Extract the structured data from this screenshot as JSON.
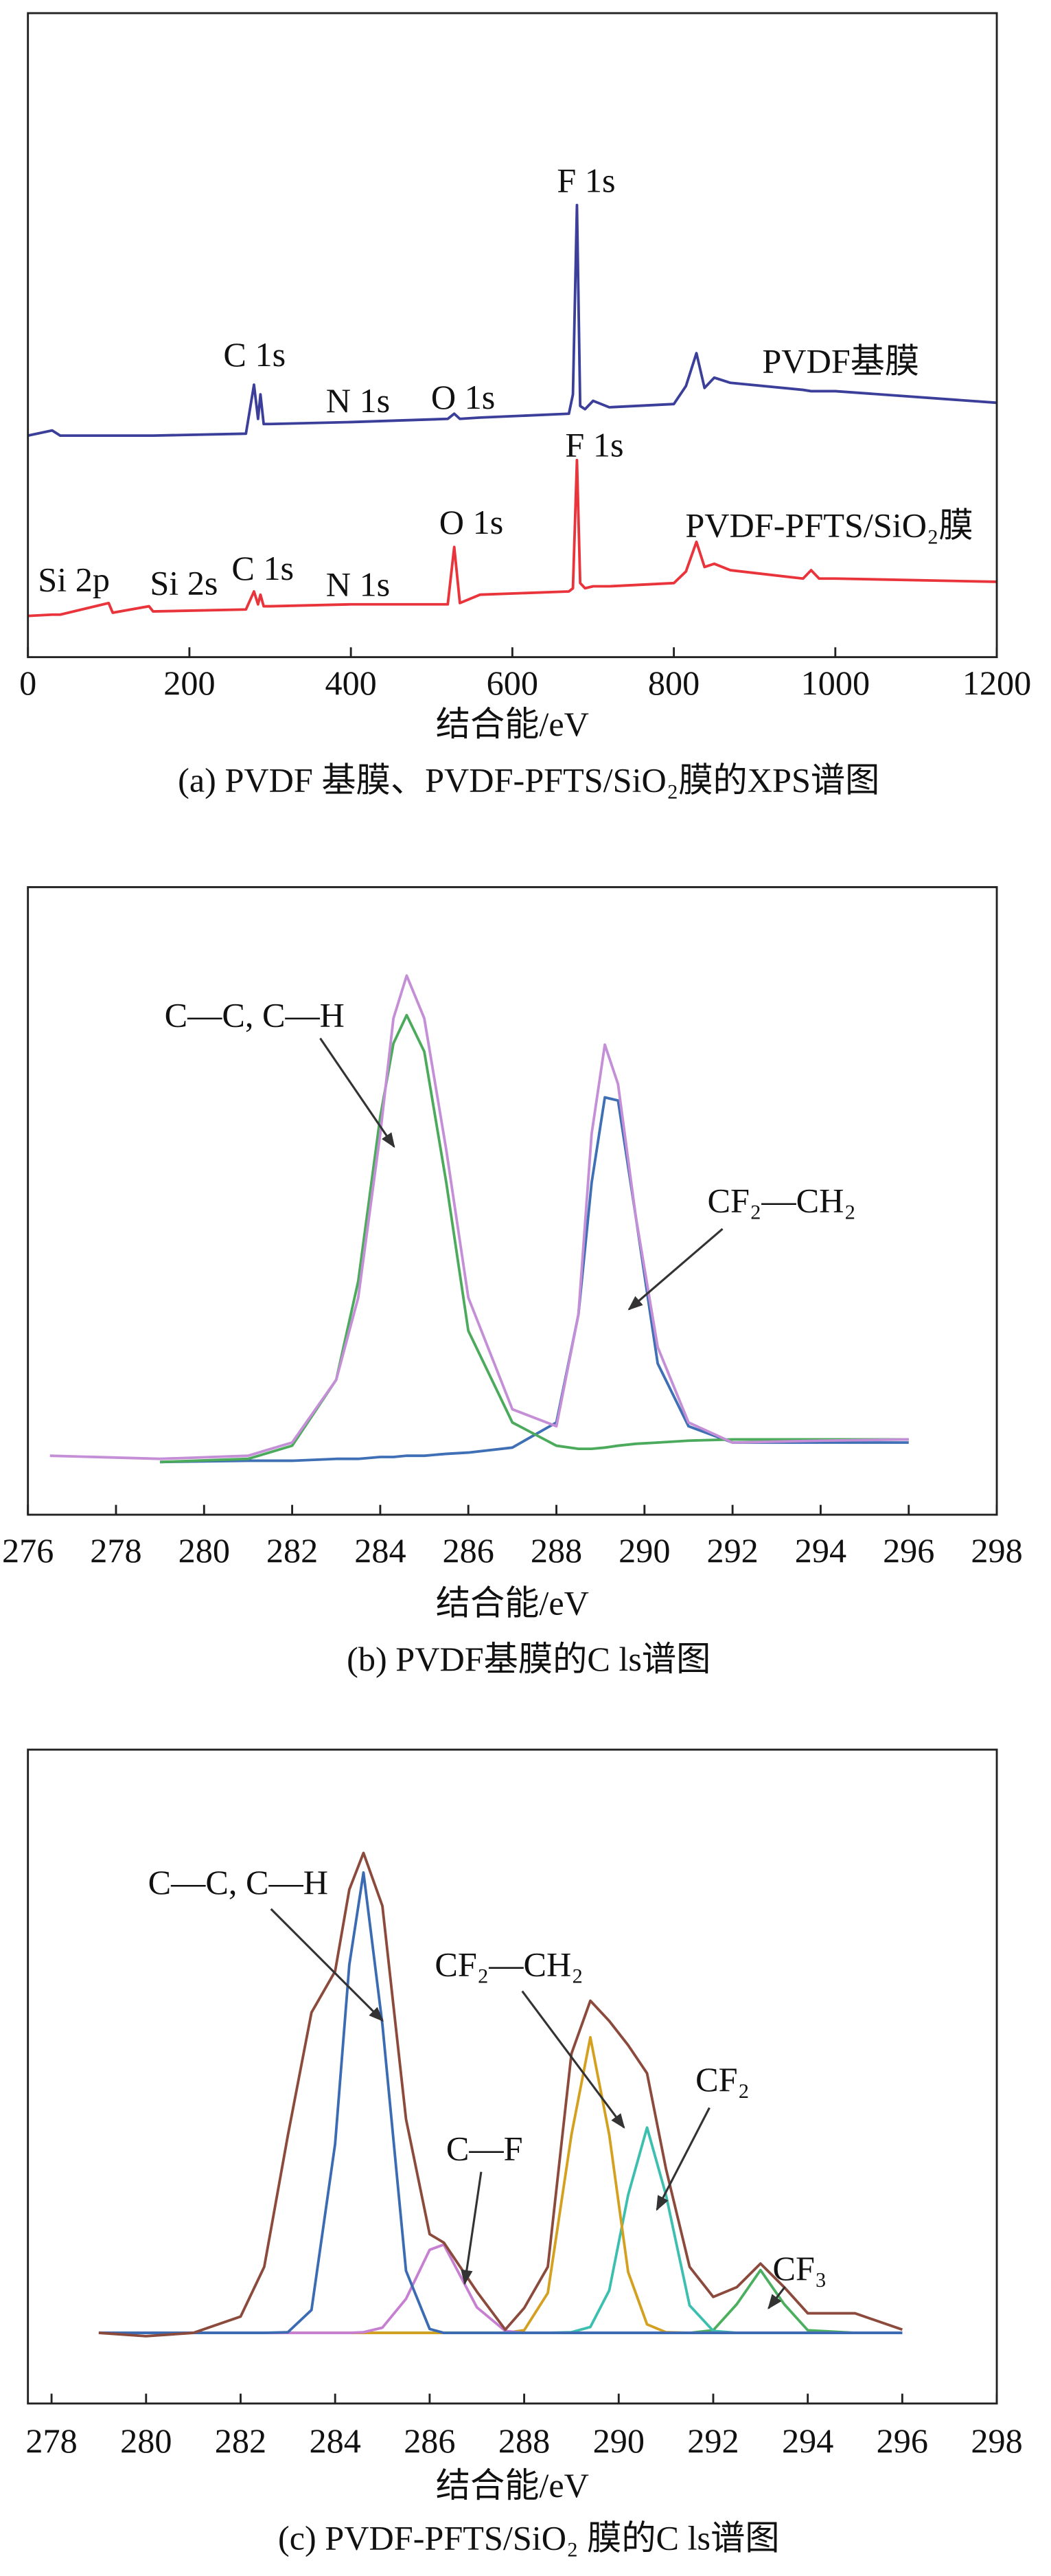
{
  "chart_data": [
    {
      "type": "line",
      "xlabel": "结合能/eV",
      "caption": "(a) PVDF 基膜、PVDF-PFTS/SiO₂膜的XPS谱图",
      "xlim": [
        0,
        1200
      ],
      "ylim": [
        0,
        100
      ],
      "xticks": [
        0,
        200,
        400,
        600,
        800,
        1000,
        1200
      ],
      "x": [
        0,
        30,
        40,
        100,
        105,
        150,
        155,
        270,
        280,
        285,
        288,
        292,
        300,
        400,
        520,
        528,
        535,
        560,
        670,
        675,
        680,
        684,
        690,
        700,
        720,
        800,
        815,
        828,
        838,
        850,
        870,
        960,
        970,
        980,
        1000,
        1200
      ],
      "series": [
        {
          "name": "PVDF基膜",
          "color": "#3b3f9a",
          "values": [
            34.4,
            35.2,
            34.4,
            34.4,
            34.4,
            34.4,
            34.4,
            34.7,
            42.3,
            37.0,
            40.8,
            36.2,
            36.2,
            36.5,
            37.0,
            37.8,
            37.0,
            37.2,
            37.8,
            40.8,
            70.2,
            39.0,
            38.5,
            39.8,
            38.8,
            39.3,
            42.1,
            47.2,
            41.8,
            43.4,
            42.6,
            41.5,
            41.3,
            41.3,
            41.3,
            39.5
          ]
        },
        {
          "name": "PVDF-PFTS/SiO₂膜",
          "color": "#e8343a",
          "values": [
            6.4,
            6.6,
            6.6,
            8.4,
            6.9,
            7.9,
            7.1,
            7.4,
            10.2,
            8.2,
            9.7,
            7.9,
            7.9,
            8.2,
            8.2,
            17.1,
            8.4,
            9.7,
            10.2,
            10.7,
            30.6,
            11.5,
            10.7,
            11.0,
            11.0,
            11.5,
            13.3,
            17.9,
            14.0,
            14.5,
            13.5,
            12.2,
            13.5,
            12.2,
            12.2,
            11.7
          ]
        }
      ],
      "annotations": [
        "F 1s",
        "C 1s",
        "N 1s",
        "O 1s",
        "F 1s",
        "O 1s",
        "Si 2p",
        "Si 2s",
        "C 1s",
        "N 1s"
      ]
    },
    {
      "type": "line",
      "xlabel": "结合能/eV",
      "caption": "(b) PVDF基膜的C ls谱图",
      "xlim": [
        276,
        298
      ],
      "ylim": [
        0,
        100
      ],
      "xticks": [
        276,
        278,
        280,
        282,
        284,
        286,
        288,
        290,
        292,
        294,
        296,
        298
      ],
      "x": [
        276.5,
        279,
        281,
        282,
        283,
        283.5,
        284,
        284.3,
        284.6,
        285,
        285.5,
        286,
        287,
        288,
        288.5,
        288.8,
        289.1,
        289.4,
        289.8,
        290.3,
        291,
        292,
        294,
        296
      ],
      "series": [
        {
          "color": "#c48fd6",
          "values": [
            9.4,
            8.9,
            9.4,
            11.5,
            21.5,
            34.6,
            60.7,
            79.1,
            85.9,
            79.1,
            58.1,
            34.6,
            16.8,
            14.1,
            31.9,
            60.7,
            74.9,
            68.6,
            47.6,
            26.7,
            14.7,
            11.5,
            11.8,
            12.0
          ]
        },
        {
          "color": "#4caa5c",
          "values": [
            null,
            8.4,
            8.9,
            11.0,
            21.5,
            37.2,
            63.4,
            75.1,
            79.6,
            73.8,
            52.9,
            29.3,
            14.7,
            11.0,
            10.5,
            10.5,
            10.7,
            11.0,
            11.3,
            11.5,
            11.8,
            12.0,
            12.0,
            12.0
          ]
        },
        {
          "color": "#3f6fb5",
          "values": [
            null,
            8.4,
            8.6,
            8.6,
            8.9,
            8.9,
            9.2,
            9.2,
            9.4,
            9.4,
            9.7,
            9.9,
            10.7,
            14.7,
            31.9,
            52.9,
            66.5,
            66.0,
            47.6,
            24.1,
            14.1,
            11.5,
            11.5,
            11.5
          ]
        }
      ],
      "annotations": [
        "C—C, C—H",
        "CF₂—CH₂"
      ]
    },
    {
      "type": "line",
      "xlabel": "结合能/eV",
      "caption": "(c) PVDF-PFTS/SiO₂ 膜的C ls谱图",
      "xlim": [
        277.5,
        298
      ],
      "ylim": [
        0,
        100
      ],
      "xticks": [
        278,
        280,
        282,
        284,
        286,
        288,
        290,
        292,
        294,
        296,
        298
      ],
      "x": [
        279,
        280,
        281,
        282,
        282.5,
        283,
        283.5,
        284,
        284.3,
        284.6,
        285,
        285.5,
        286,
        286.3,
        287,
        287.6,
        288,
        288.5,
        289,
        289.4,
        289.8,
        290.2,
        290.6,
        291,
        291.5,
        292,
        292.5,
        293,
        293.5,
        294,
        295,
        296
      ],
      "series": [
        {
          "color": "#8b4a3c",
          "values": [
            10.8,
            10.3,
            10.8,
            13.3,
            20.9,
            41.0,
            59.8,
            66.1,
            78.6,
            84.2,
            76.1,
            43.5,
            25.9,
            24.6,
            17.1,
            11.3,
            14.6,
            20.9,
            53.5,
            61.6,
            58.5,
            54.8,
            50.5,
            35.9,
            20.9,
            16.3,
            17.8,
            21.4,
            17.8,
            13.8,
            13.8,
            11.3
          ]
        },
        {
          "color": "#3a6bb3",
          "values": [
            10.8,
            10.8,
            10.8,
            10.8,
            10.8,
            10.9,
            14.3,
            39.7,
            67.1,
            81.2,
            58.0,
            20.3,
            11.4,
            10.8,
            10.8,
            10.8,
            10.8,
            10.8,
            10.8,
            10.8,
            10.8,
            10.8,
            10.8,
            10.8,
            10.8,
            10.8,
            10.8,
            10.8,
            10.8,
            10.8,
            10.8,
            10.8
          ]
        },
        {
          "color": "#c77fd1",
          "values": [
            10.8,
            10.8,
            10.8,
            10.8,
            10.8,
            10.8,
            10.8,
            10.8,
            10.8,
            10.9,
            11.6,
            16.0,
            23.5,
            24.3,
            14.7,
            11.1,
            10.8,
            10.8,
            10.8,
            10.8,
            10.8,
            10.8,
            10.8,
            10.8,
            10.8,
            10.8,
            10.8,
            10.8,
            10.8,
            10.8,
            10.8,
            10.8
          ]
        },
        {
          "color": "#d4a020",
          "values": [
            10.8,
            10.8,
            10.8,
            10.8,
            10.8,
            10.8,
            10.8,
            10.8,
            10.8,
            10.8,
            10.8,
            10.8,
            10.8,
            10.8,
            10.8,
            10.8,
            11.2,
            16.9,
            41.1,
            56.0,
            41.1,
            20.1,
            12.1,
            10.9,
            10.8,
            10.8,
            10.8,
            10.8,
            10.8,
            10.8,
            10.8,
            10.8
          ]
        },
        {
          "color": "#3dbfb0",
          "values": [
            10.8,
            10.8,
            10.8,
            10.8,
            10.8,
            10.8,
            10.8,
            10.8,
            10.8,
            10.8,
            10.8,
            10.8,
            10.8,
            10.8,
            10.8,
            10.8,
            10.8,
            10.8,
            10.9,
            11.7,
            17.3,
            31.9,
            42.2,
            31.9,
            15.0,
            11.1,
            10.8,
            10.8,
            10.8,
            10.8,
            10.8,
            10.8
          ]
        },
        {
          "color": "#4caf60",
          "values": [
            10.8,
            10.8,
            10.8,
            10.8,
            10.8,
            10.8,
            10.8,
            10.8,
            10.8,
            10.8,
            10.8,
            10.8,
            10.8,
            10.8,
            10.8,
            10.8,
            10.8,
            10.8,
            10.8,
            10.8,
            10.8,
            10.8,
            10.8,
            10.8,
            10.8,
            11.2,
            15.2,
            20.4,
            15.2,
            11.2,
            10.8,
            10.8
          ]
        }
      ],
      "annotations": [
        "C—C, C—H",
        "CF₂—CH₂",
        "C—F",
        "CF₂",
        "CF₃"
      ]
    }
  ]
}
